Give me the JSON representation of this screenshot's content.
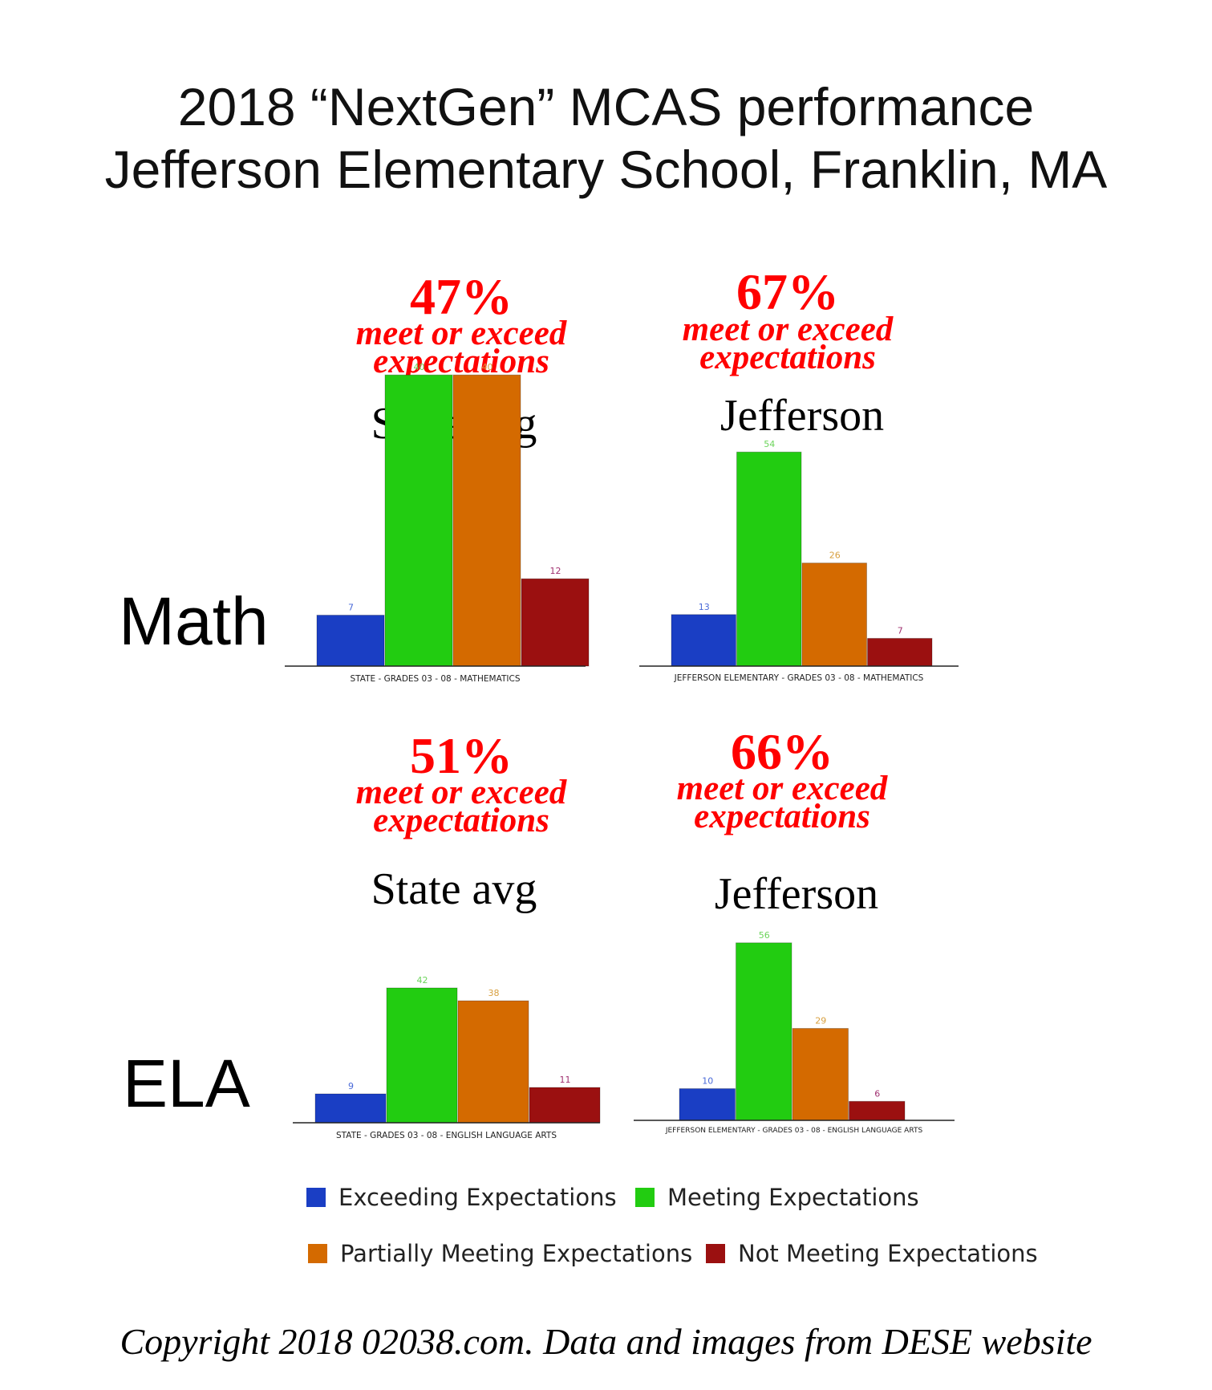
{
  "title_line1": "2018 “NextGen” MCAS performance",
  "title_line2": "Jefferson Elementary School, Franklin, MA",
  "rows": {
    "math": "Math",
    "ela": "ELA"
  },
  "callouts": {
    "math_state": {
      "pct": "47%",
      "meet_line1": "meet or exceed",
      "meet_line2": "expectations",
      "label": "State avg"
    },
    "math_jefferson": {
      "pct": "67%",
      "meet_line1": "meet or exceed",
      "meet_line2": "expectations",
      "label": "Jefferson"
    },
    "ela_state": {
      "pct": "51%",
      "meet_line1": "meet or exceed",
      "meet_line2": "expectations",
      "label": "State avg"
    },
    "ela_jefferson": {
      "pct": "66%",
      "meet_line1": "meet or exceed",
      "meet_line2": "expectations",
      "label": "Jefferson"
    }
  },
  "colors": {
    "exceeding": "#1a3ec4",
    "meeting": "#22cc11",
    "partially": "#d46a00",
    "not_meeting": "#9b1010",
    "callout": "#ff0000"
  },
  "legend": [
    {
      "label": "Exceeding Expectations",
      "color": "#1a3ec4"
    },
    {
      "label": "Meeting Expectations",
      "color": "#22cc11"
    },
    {
      "label": "Partially Meeting Expectations",
      "color": "#d46a00"
    },
    {
      "label": "Not Meeting Expectations",
      "color": "#9b1010"
    }
  ],
  "chart_data": [
    {
      "type": "bar",
      "categories": [
        "Exceeding Expectations",
        "Meeting Expectations",
        "Partially Meeting Expectations",
        "Not Meeting Expectations"
      ],
      "values": [
        7,
        40,
        40,
        12
      ],
      "xlabel": "STATE - GRADES 03 - 08 - MATHEMATICS",
      "ylabel": "",
      "ylim": [
        0,
        54
      ]
    },
    {
      "type": "bar",
      "categories": [
        "Exceeding Expectations",
        "Meeting Expectations",
        "Partially Meeting Expectations",
        "Not Meeting Expectations"
      ],
      "values": [
        13,
        54,
        26,
        7
      ],
      "xlabel": "JEFFERSON ELEMENTARY - GRADES 03 - 08 - MATHEMATICS",
      "ylabel": "",
      "ylim": [
        0,
        54
      ]
    },
    {
      "type": "bar",
      "categories": [
        "Exceeding Expectations",
        "Meeting Expectations",
        "Partially Meeting Expectations",
        "Not Meeting Expectations"
      ],
      "values": [
        9,
        42,
        38,
        11
      ],
      "xlabel": "STATE - GRADES 03 - 08 - ENGLISH LANGUAGE ARTS",
      "ylabel": "",
      "ylim": [
        0,
        56
      ]
    },
    {
      "type": "bar",
      "categories": [
        "Exceeding Expectations",
        "Meeting Expectations",
        "Partially Meeting Expectations",
        "Not Meeting Expectations"
      ],
      "values": [
        10,
        56,
        29,
        6
      ],
      "xlabel": "JEFFERSON ELEMENTARY - GRADES 03 - 08 - ENGLISH LANGUAGE ARTS",
      "ylabel": "",
      "ylim": [
        0,
        56
      ]
    }
  ],
  "footer": "Copyright 2018 02038.com.  Data and images from DESE website"
}
